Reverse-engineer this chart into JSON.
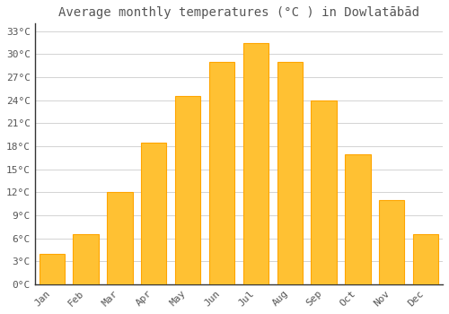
{
  "title": "Average monthly temperatures (°C ) in Dowlatābād",
  "months": [
    "Jan",
    "Feb",
    "Mar",
    "Apr",
    "May",
    "Jun",
    "Jul",
    "Aug",
    "Sep",
    "Oct",
    "Nov",
    "Dec"
  ],
  "values": [
    4.0,
    6.5,
    12.0,
    18.5,
    24.5,
    29.0,
    31.5,
    29.0,
    24.0,
    17.0,
    11.0,
    6.5
  ],
  "bar_color": "#FFC133",
  "bar_edge_color": "#FFA500",
  "background_color": "#FFFFFF",
  "grid_color": "#CCCCCC",
  "text_color": "#555555",
  "ylim": [
    0,
    34
  ],
  "yticks": [
    0,
    3,
    6,
    9,
    12,
    15,
    18,
    21,
    24,
    27,
    30,
    33
  ],
  "ytick_labels": [
    "0°C",
    "3°C",
    "6°C",
    "9°C",
    "12°C",
    "15°C",
    "18°C",
    "21°C",
    "24°C",
    "27°C",
    "30°C",
    "33°C"
  ],
  "title_fontsize": 10,
  "tick_fontsize": 8
}
